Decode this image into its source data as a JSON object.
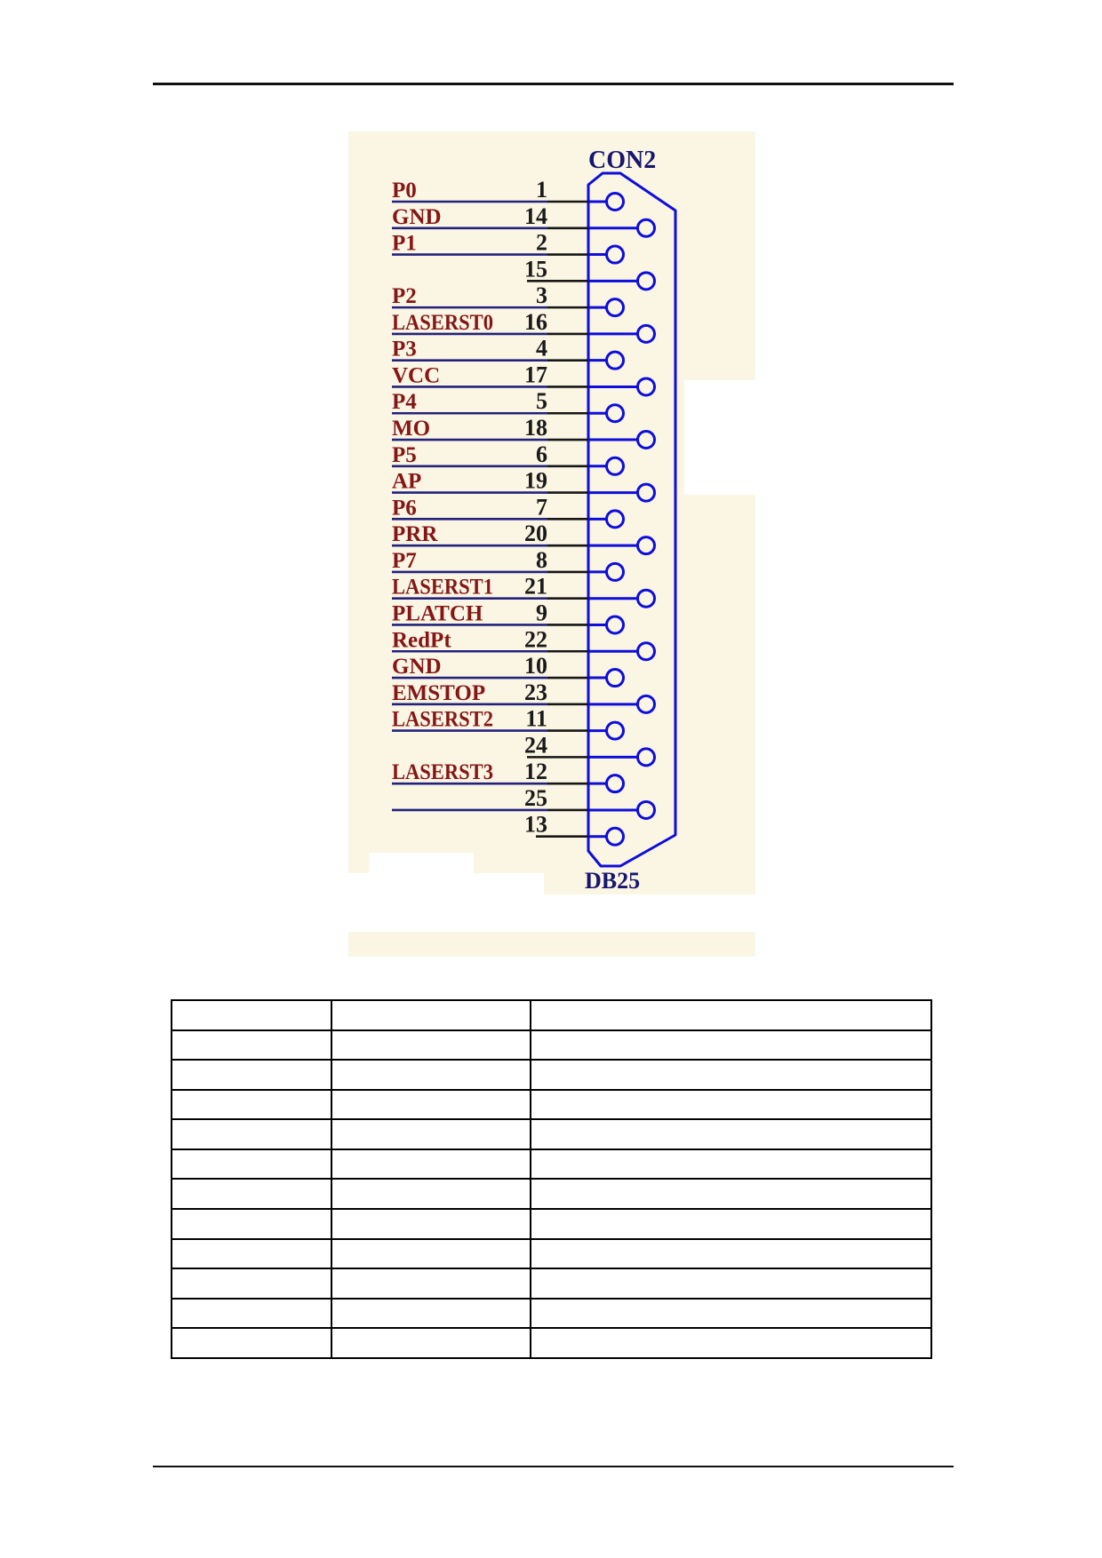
{
  "diagram": {
    "connector_title": "CON2",
    "connector_footer": "DB25",
    "pins": [
      {
        "label": "P0",
        "number": "1"
      },
      {
        "label": "GND",
        "number": "14"
      },
      {
        "label": "P1",
        "number": "2"
      },
      {
        "label": "",
        "number": "15"
      },
      {
        "label": "P2",
        "number": "3"
      },
      {
        "label": "LASERST0",
        "number": "16"
      },
      {
        "label": "P3",
        "number": "4"
      },
      {
        "label": "VCC",
        "number": "17"
      },
      {
        "label": "P4",
        "number": "5"
      },
      {
        "label": "MO",
        "number": "18"
      },
      {
        "label": "P5",
        "number": "6"
      },
      {
        "label": "AP",
        "number": "19"
      },
      {
        "label": "P6",
        "number": "7"
      },
      {
        "label": "PRR",
        "number": "20"
      },
      {
        "label": "P7",
        "number": "8"
      },
      {
        "label": "LASERST1",
        "number": "21"
      },
      {
        "label": "PLATCH",
        "number": "9"
      },
      {
        "label": "RedPt",
        "number": "22"
      },
      {
        "label": "GND",
        "number": "10"
      },
      {
        "label": "EMSTOP",
        "number": "23"
      },
      {
        "label": "LASERST2",
        "number": "11"
      },
      {
        "label": "",
        "number": "24"
      },
      {
        "label": "LASERST3",
        "number": "12"
      },
      {
        "label": "",
        "number": "25"
      },
      {
        "label": "",
        "number": "13"
      }
    ],
    "colors": {
      "canvas": "#fbf5e3",
      "label_maroon": "#841716",
      "number_black": "#1a1a1a",
      "title_navy": "#16166e",
      "wire_navy": "#22227c",
      "wire_black": "#161616",
      "connector_blue": "#0d0ddc"
    }
  },
  "table": {
    "row_count": 12,
    "column_count": 3,
    "cells_empty": true
  }
}
